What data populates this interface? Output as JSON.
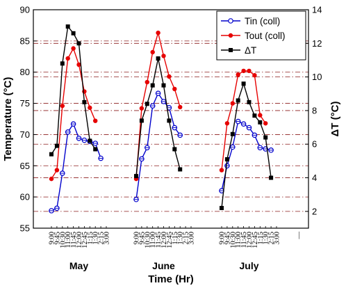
{
  "chart_data": {
    "type": "line",
    "xlabel": "Time (Hr)",
    "ylabel_left": "Temperature (°C)",
    "ylabel_right": "ΔT (°C)",
    "ylim_left": [
      55,
      90
    ],
    "yticks_left": [
      "55",
      "60",
      "65",
      "70",
      "75",
      "80",
      "85",
      "90"
    ],
    "ylim_right": [
      1,
      14
    ],
    "yticks_right": [
      "2",
      "4",
      "6",
      "8",
      "10",
      "12",
      "14"
    ],
    "grid": "horizontal dashed (dark red)",
    "legend_position": "top-right",
    "time_labels": [
      "9:00",
      "9:45",
      "10:30",
      "11:00",
      "11:45",
      "12:00",
      "12:45",
      "1:15",
      "1:30",
      "2:15",
      "3:00"
    ],
    "trailing_tick_label": "—",
    "groups": [
      "May",
      "June",
      "July"
    ],
    "series": [
      {
        "name": "Tin (coll)",
        "axis": "left",
        "color": "#0000cc",
        "marker": "circle-open",
        "groups": [
          [
            57.8,
            58.2,
            63.8,
            70.4,
            71.7,
            69.4,
            69.1,
            68.9,
            68.6,
            66.2
          ],
          [
            59.6,
            66.1,
            67.9,
            74.6,
            76.6,
            75.3,
            74.3,
            71.1,
            69.9
          ],
          [
            61.0,
            65.0,
            68.0,
            72.1,
            71.7,
            71.1,
            69.9,
            67.9,
            67.7,
            67.5
          ]
        ]
      },
      {
        "name": "Tout (coll)",
        "axis": "left",
        "color": "#e60000",
        "marker": "circle-filled",
        "groups": [
          [
            62.9,
            64.3,
            74.6,
            82.2,
            83.8,
            81.2,
            76.9,
            74.3,
            72.2
          ],
          [
            62.9,
            74.2,
            78.4,
            83.2,
            86.3,
            82.6,
            79.3,
            77.3,
            74.4
          ],
          [
            64.3,
            71.8,
            75.0,
            79.6,
            80.2,
            80.2,
            79.5,
            73.1,
            71.8
          ]
        ]
      },
      {
        "name": "ΔT",
        "axis": "right",
        "color": "#000000",
        "marker": "square-filled",
        "groups": [
          [
            5.4,
            5.9,
            10.8,
            13.0,
            12.6,
            12.0,
            8.5,
            6.2,
            5.7
          ],
          [
            4.1,
            7.4,
            8.4,
            9.5,
            11.1,
            9.5,
            7.4,
            5.7,
            4.5
          ],
          [
            2.2,
            5.1,
            6.6,
            8.6,
            9.6,
            8.5,
            7.7,
            7.3,
            6.4,
            4.0
          ]
        ]
      }
    ]
  }
}
